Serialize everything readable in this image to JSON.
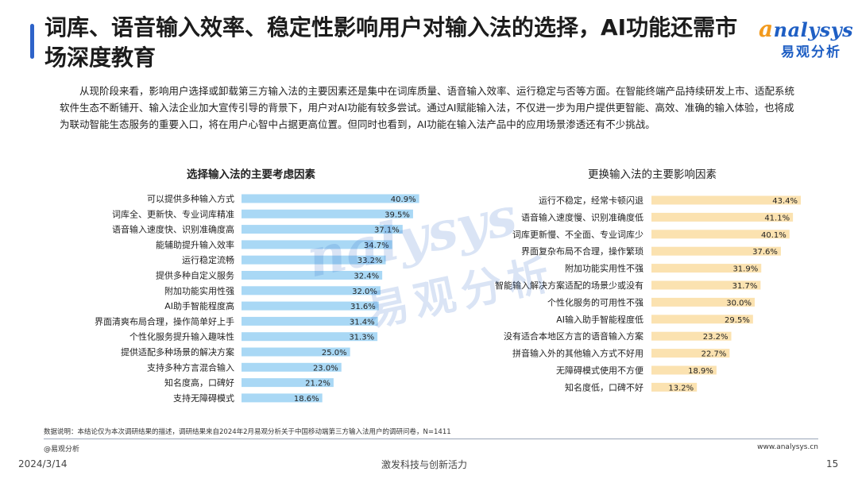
{
  "header": {
    "title": "词库、语音输入效率、稳定性影响用户对输入法的选择，AI功能还需市场深度教育",
    "logo_en": "nalysys",
    "logo_cn": "易观分析"
  },
  "paragraph": "从现阶段来看，影响用户选择或卸载第三方输入法的主要因素还是集中在词库质量、语音输入效率、运行稳定与否等方面。在智能终端产品持续研发上市、适配系统软件生态不断铺开、输入法企业加大宣传引导的背景下，用户对AI功能有较多尝试。通过AI赋能输入法，不仅进一步为用户提供更智能、高效、准确的输入体验，也将成为联动智能生态服务的重要入口，将在用户心智中占据更高位置。但同时也看到，AI功能在输入法产品中的应用场景渗透还有不少挑战。",
  "watermark": {
    "en": "nalysys",
    "cn": "易观分析"
  },
  "colors": {
    "accent": "#2e63c9",
    "left_bar": "#a9d8f5",
    "right_bar": "#fbe2b0",
    "brand_orange": "#f29a1e"
  },
  "chart_data": [
    {
      "type": "bar",
      "orientation": "horizontal",
      "title": "选择输入法的主要考虑因素",
      "unit": "%",
      "categories": [
        "可以提供多种输入方式",
        "词库全、更新快、专业词库精准",
        "语音输入速度快、识别准确度高",
        "能辅助提升输入效率",
        "运行稳定流畅",
        "提供多种自定义服务",
        "附加功能实用性强",
        "AI助手智能程度高",
        "界面清爽布局合理，操作简单好上手",
        "个性化服务提升输入趣味性",
        "提供适配多种场景的解决方案",
        "支持多种方言混合输入",
        "知名度高，口碑好",
        "支持无障碍模式"
      ],
      "values": [
        40.9,
        39.5,
        37.1,
        34.7,
        33.2,
        32.4,
        32.0,
        31.6,
        31.4,
        31.3,
        25.0,
        23.0,
        21.2,
        18.6
      ],
      "labels": [
        "40.9%",
        "39.5%",
        "37.1%",
        "34.7%",
        "33.2%",
        "32.4%",
        "32.0%",
        "31.6%",
        "31.4%",
        "31.3%",
        "25.0%",
        "23.0%",
        "21.2%",
        "18.6%"
      ],
      "xlim": [
        0,
        45
      ],
      "color": "#a9d8f5"
    },
    {
      "type": "bar",
      "orientation": "horizontal",
      "title": "更换输入法的主要影响因素",
      "unit": "%",
      "categories": [
        "运行不稳定，经常卡顿闪退",
        "语音输入速度慢、识别准确度低",
        "词库更新慢、不全面、专业词库少",
        "界面复杂布局不合理，操作繁琐",
        "附加功能实用性不强",
        "智能输入解决方案适配的场景少或没有",
        "个性化服务的可用性不强",
        "AI输入助手智能程度低",
        "没有适合本地区方言的语音输入方案",
        "拼音输入外的其他输入方式不好用",
        "无障碍模式使用不方便",
        "知名度低，口碑不好"
      ],
      "values": [
        43.4,
        41.1,
        40.1,
        37.6,
        31.9,
        31.7,
        30.0,
        29.5,
        23.2,
        22.7,
        18.9,
        13.2
      ],
      "labels": [
        "43.4%",
        "41.1%",
        "40.1%",
        "37.6%",
        "31.9%",
        "31.7%",
        "30.0%",
        "29.5%",
        "23.2%",
        "22.7%",
        "18.9%",
        "13.2%"
      ],
      "xlim": [
        0,
        45
      ],
      "color": "#fbe2b0"
    }
  ],
  "footer": {
    "note": "数据说明：本结论仅为本次调研结果的描述，调研结果来自2024年2月易观分析关于中国移动端第三方输入法用户的调研问卷，N=1411",
    "copyright": "@易观分析",
    "site": "www.analysys.cn",
    "date": "2024/3/14",
    "slogan": "激发科技与创新活力",
    "page": "15"
  }
}
